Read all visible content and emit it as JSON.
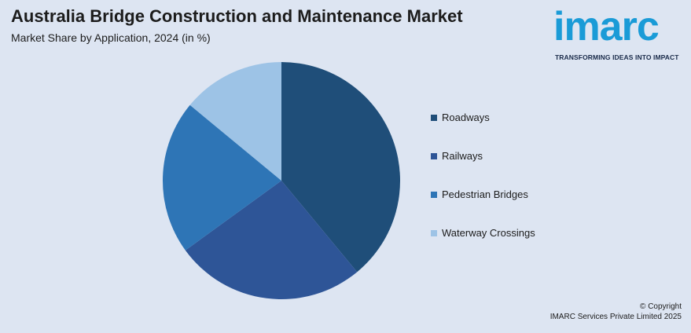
{
  "header": {
    "title": "Australia Bridge Construction and Maintenance Market",
    "subtitle": "Market Share by Application, 2024 (in %)"
  },
  "logo": {
    "wordmark": "imarc",
    "tagline": "TRANSFORMING IDEAS INTO IMPACT",
    "color": "#1a9bd7"
  },
  "footer": {
    "copyright_line1": "© Copyright",
    "copyright_line2": "IMARC Services Private Limited 2025"
  },
  "chart_data": {
    "type": "pie",
    "title": "Australia Bridge Construction and Maintenance Market",
    "subtitle": "Market Share by Application, 2024 (in %)",
    "categories": [
      "Roadways",
      "Railways",
      "Pedestrian Bridges",
      "Waterway Crossings"
    ],
    "values": [
      39,
      26,
      21,
      14
    ],
    "colors": [
      "#1f4e79",
      "#2e5597",
      "#2e75b6",
      "#9dc3e6"
    ],
    "start_angle_deg": 0,
    "direction": "clockwise",
    "data_labels": false,
    "legend_position": "right"
  }
}
